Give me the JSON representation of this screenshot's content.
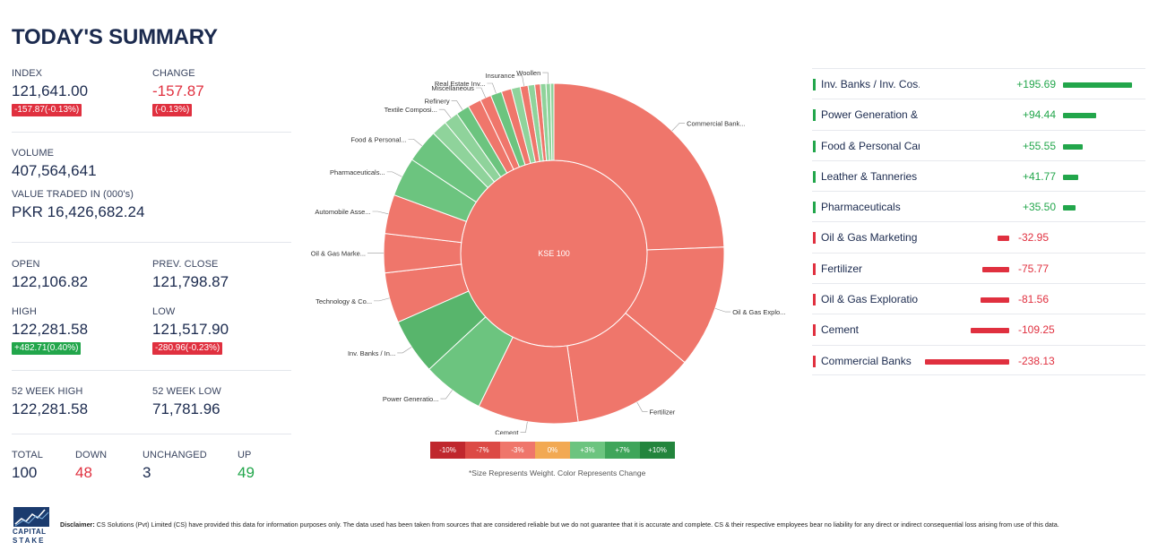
{
  "title": "TODAY'S SUMMARY",
  "summary": {
    "index_label": "INDEX",
    "index_value": "121,641.00",
    "index_badge": "-157.87(-0.13%)",
    "change_label": "CHANGE",
    "change_value": "-157.87",
    "change_badge": "(-0.13%)",
    "volume_label": "VOLUME",
    "volume_value": "407,564,641",
    "value_traded_label": "VALUE TRADED IN (000's)",
    "value_traded_value": "PKR 16,426,682.24",
    "open_label": "OPEN",
    "open_value": "122,106.82",
    "prev_close_label": "PREV. CLOSE",
    "prev_close_value": "121,798.87",
    "high_label": "HIGH",
    "high_value": "122,281.58",
    "high_badge": "+482.71(0.40%)",
    "low_label": "LOW",
    "low_value": "121,517.90",
    "low_badge": "-280.96(-0.23%)",
    "wk52_high_label": "52 WEEK HIGH",
    "wk52_high_value": "122,281.58",
    "wk52_low_label": "52 WEEK LOW",
    "wk52_low_value": "71,781.96",
    "total_label": "TOTAL",
    "total_value": "100",
    "down_label": "DOWN",
    "down_value": "48",
    "unchanged_label": "UNCHANGED",
    "unchanged_value": "3",
    "up_label": "UP",
    "up_value": "49"
  },
  "chart_data": {
    "type": "sunburst",
    "center_label": "KSE 100",
    "sectors": [
      {
        "name": "Commercial Bank...",
        "weight": 23.0,
        "color": "#ef766b"
      },
      {
        "name": "Oil & Gas Explo...",
        "weight": 11.0,
        "color": "#ef766b"
      },
      {
        "name": "Fertilizer",
        "weight": 11.0,
        "color": "#ef766b"
      },
      {
        "name": "Cement",
        "weight": 9.0,
        "color": "#ef766b"
      },
      {
        "name": "Power Generatio...",
        "weight": 5.5,
        "color": "#6cc47f"
      },
      {
        "name": "Inv. Banks / In...",
        "weight": 5.0,
        "color": "#58b56c"
      },
      {
        "name": "Technology & Co...",
        "weight": 4.5,
        "color": "#ef766b"
      },
      {
        "name": "Oil & Gas Marke...",
        "weight": 3.5,
        "color": "#ef766b"
      },
      {
        "name": "Automobile Asse...",
        "weight": 3.5,
        "color": "#ef766b"
      },
      {
        "name": "Pharmaceuticals...",
        "weight": 3.5,
        "color": "#6cc47f"
      },
      {
        "name": "Food & Personal...",
        "weight": 3.0,
        "color": "#6cc47f"
      },
      {
        "name": "",
        "weight": 1.4,
        "color": "#8fd39b"
      },
      {
        "name": "Textile Composi...",
        "weight": 1.3,
        "color": "#8fd39b"
      },
      {
        "name": "Refinery",
        "weight": 1.2,
        "color": "#6cc47f"
      },
      {
        "name": "",
        "weight": 1.2,
        "color": "#ef766b"
      },
      {
        "name": "Miscellaneous",
        "weight": 1.0,
        "color": "#ef766b"
      },
      {
        "name": "Real Estate Inv...",
        "weight": 1.0,
        "color": "#6cc47f"
      },
      {
        "name": "",
        "weight": 0.9,
        "color": "#ef766b"
      },
      {
        "name": "",
        "weight": 0.8,
        "color": "#8fd39b"
      },
      {
        "name": "Insurance",
        "weight": 0.7,
        "color": "#ef766b"
      },
      {
        "name": "",
        "weight": 0.6,
        "color": "#8fd39b"
      },
      {
        "name": "",
        "weight": 0.5,
        "color": "#ef766b"
      },
      {
        "name": "",
        "weight": 0.5,
        "color": "#8fd39b"
      },
      {
        "name": "Woollen",
        "weight": 0.4,
        "color": "#8fd39b"
      },
      {
        "name": "",
        "weight": 0.3,
        "color": "#8fd39b"
      }
    ],
    "legend": [
      {
        "label": "-10%",
        "color": "#c0272d"
      },
      {
        "label": "-7%",
        "color": "#dc4a45"
      },
      {
        "label": "-3%",
        "color": "#ef766b"
      },
      {
        "label": "0%",
        "color": "#f2a953"
      },
      {
        "label": "+3%",
        "color": "#6cc47f"
      },
      {
        "label": "+7%",
        "color": "#3fa55a"
      },
      {
        "label": "+10%",
        "color": "#23853d"
      }
    ],
    "footnote": "*Size Represents Weight. Color Represents Change"
  },
  "contributors": [
    {
      "name": "Inv. Banks / Inv. Cos.",
      "value": "+195.69",
      "points": 195.69
    },
    {
      "name": "Power Generation &",
      "value": "+94.44",
      "points": 94.44
    },
    {
      "name": "Food & Personal Car",
      "value": "+55.55",
      "points": 55.55
    },
    {
      "name": "Leather & Tanneries",
      "value": "+41.77",
      "points": 41.77
    },
    {
      "name": "Pharmaceuticals",
      "value": "+35.50",
      "points": 35.5
    },
    {
      "name": "Oil & Gas Marketing",
      "value": "-32.95",
      "points": -32.95
    },
    {
      "name": "Fertilizer",
      "value": "-75.77",
      "points": -75.77
    },
    {
      "name": "Oil & Gas Exploratio",
      "value": "-81.56",
      "points": -81.56
    },
    {
      "name": "Cement",
      "value": "-109.25",
      "points": -109.25
    },
    {
      "name": "Commercial Banks",
      "value": "-238.13",
      "points": -238.13
    }
  ],
  "colors": {
    "positive": "#22a64b",
    "negative": "#e0303f"
  },
  "disclaimer_label": "Disclaimer:",
  "disclaimer_text": "CS Solutions (Pvt) Limited (CS) have provided this data for information purposes only. The data used has been taken from sources that are considered reliable but we do not guarantee that it is accurate and complete. CS & their respective employees bear no liability for any direct or indirect consequential loss arising from use of this data.",
  "logo_text_1": "CAPITAL",
  "logo_text_2": "STAKE"
}
